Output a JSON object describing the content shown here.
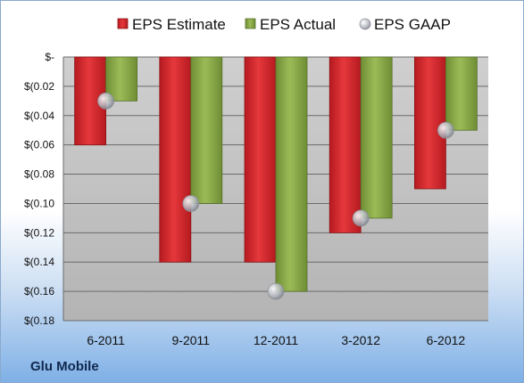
{
  "footer": {
    "company": "Glu Mobile"
  },
  "colors": {
    "estimate": "#d9262b",
    "actual": "#8dac4a",
    "gaap": "#b9bec7",
    "plot_bg": "#c7c7c7"
  },
  "chart_data": {
    "type": "bar",
    "categories": [
      "6-2011",
      "9-2011",
      "12-2011",
      "3-2012",
      "6-2012"
    ],
    "series": [
      {
        "name": "EPS Estimate",
        "type": "bar",
        "values": [
          -0.06,
          -0.14,
          -0.14,
          -0.12,
          -0.09
        ]
      },
      {
        "name": "EPS Actual",
        "type": "bar",
        "values": [
          -0.03,
          -0.1,
          -0.16,
          -0.11,
          -0.05
        ]
      },
      {
        "name": "EPS GAAP",
        "type": "marker",
        "values": [
          -0.03,
          -0.1,
          -0.16,
          -0.11,
          -0.05
        ]
      }
    ],
    "ylim": [
      -0.18,
      0
    ],
    "yticks": [
      0,
      -0.02,
      -0.04,
      -0.06,
      -0.08,
      -0.1,
      -0.12,
      -0.14,
      -0.16,
      -0.18
    ],
    "ytick_labels": [
      "$-",
      "$(0.02",
      "$(0.04",
      "$(0.06",
      "$(0.08",
      "$(0.10",
      "$(0.12",
      "$(0.14",
      "$(0.16",
      "$(0.18"
    ],
    "legend_position": "top",
    "grid": true
  }
}
